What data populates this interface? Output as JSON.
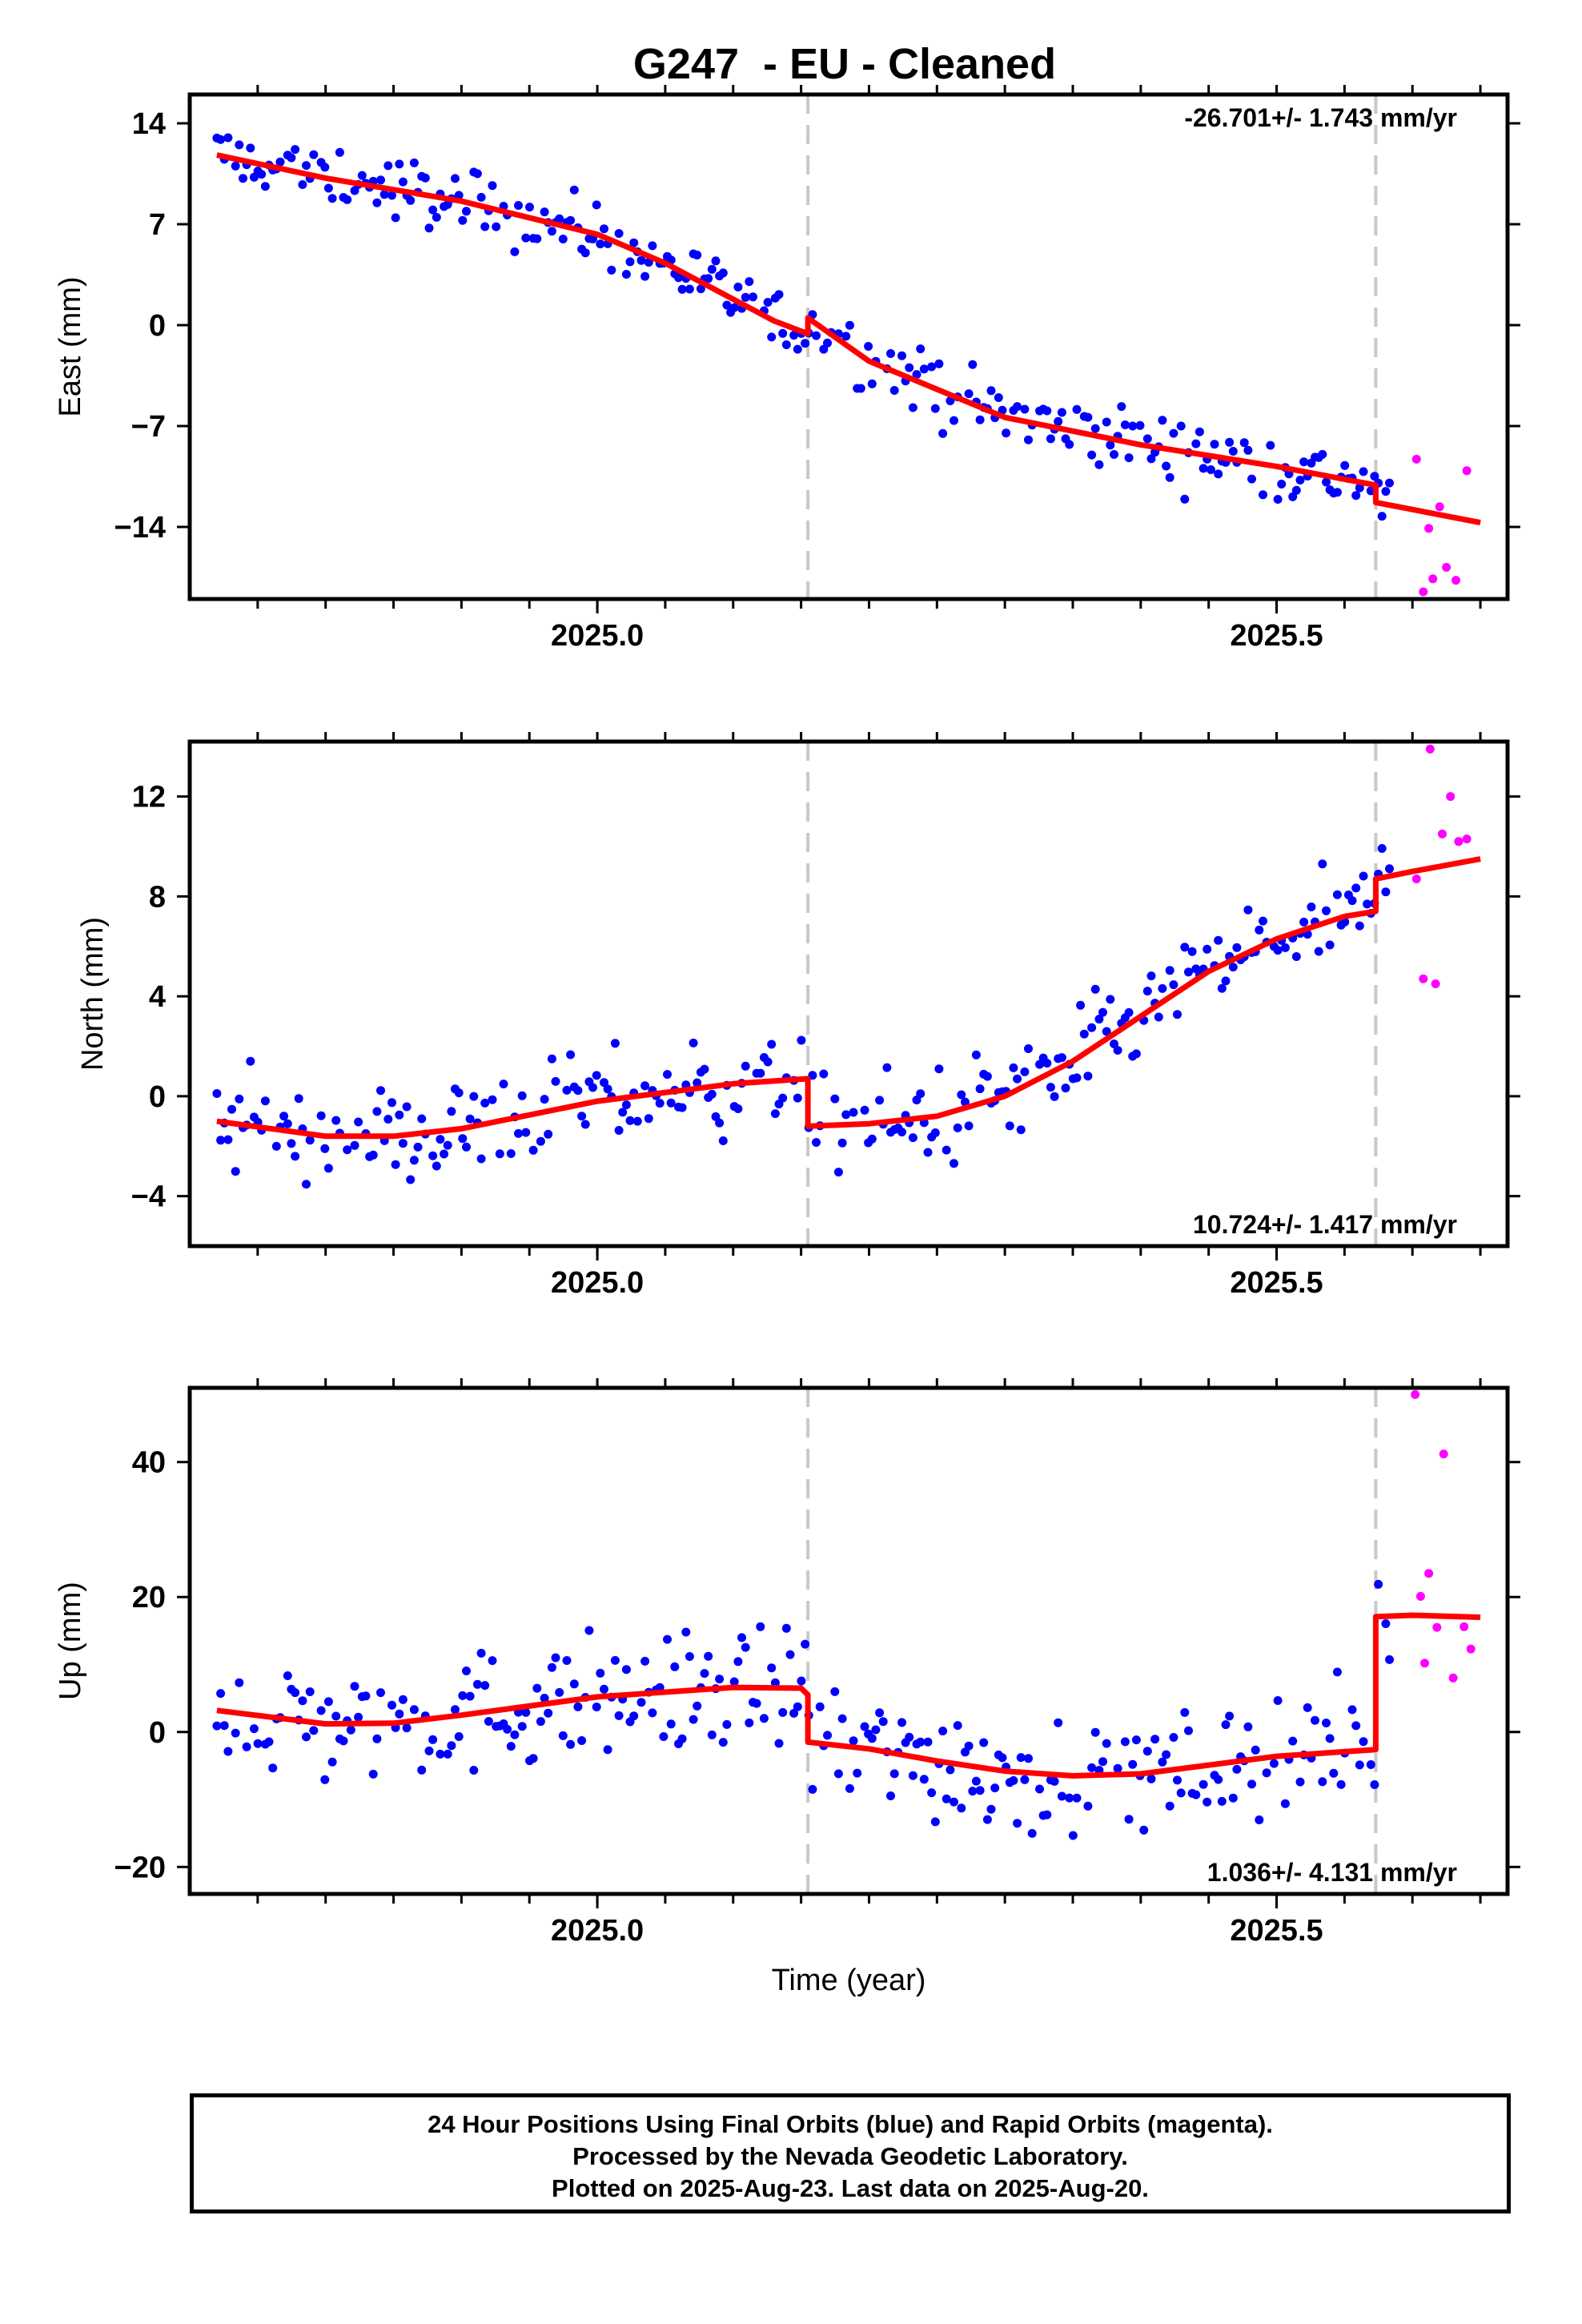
{
  "title": "G247  - EU - Cleaned",
  "colors": {
    "final": "#0000ff",
    "rapid": "#ff00ff",
    "model": "#ff0000",
    "events": "#c8c8c8"
  },
  "caption": [
    "24 Hour Positions Using Final Orbits (blue) and Rapid Orbits (magenta).",
    "Processed by the Nevada Geodetic Laboratory.",
    "Plotted on 2025-Aug-23. Last data on 2025-Aug-20."
  ],
  "chart_data": [
    {
      "type": "scatter",
      "ylabel": "East (mm)",
      "xlabel": "",
      "xlim": [
        2024.7,
        2025.67
      ],
      "ylim": [
        -19,
        16
      ],
      "xticks": [
        2025.0,
        2025.5
      ],
      "yticks": [
        -14,
        -7,
        0,
        7,
        14
      ],
      "rate_label": "-26.701+/- 1.743 mm/yr",
      "rate_position": "top-right",
      "events": [
        2025.155,
        2025.573
      ],
      "model_series": {
        "x": [
          2024.72,
          2024.8,
          2024.9,
          2025.0,
          2025.05,
          2025.1,
          2025.13,
          2025.155,
          2025.155,
          2025.2,
          2025.3,
          2025.4,
          2025.5,
          2025.573,
          2025.573,
          2025.65
        ],
        "y": [
          11.8,
          10.2,
          8.6,
          6.3,
          4.3,
          1.8,
          0.3,
          -0.6,
          0.5,
          -2.5,
          -6.4,
          -8.3,
          -9.8,
          -11.1,
          -12.3,
          -13.7
        ]
      },
      "rapid_series": {
        "x": [
          2025.603,
          2025.608,
          2025.612,
          2025.615,
          2025.62,
          2025.625,
          2025.632,
          2025.64
        ],
        "y": [
          -9.3,
          -18.5,
          -14.1,
          -17.6,
          -12.6,
          -16.8,
          -17.7,
          -10.1
        ]
      }
    },
    {
      "type": "scatter",
      "ylabel": "North (mm)",
      "xlabel": "",
      "xlim": [
        2024.7,
        2025.67
      ],
      "ylim": [
        -6,
        14.2
      ],
      "xticks": [
        2025.0,
        2025.5
      ],
      "yticks": [
        -4,
        0,
        4,
        8,
        12
      ],
      "rate_label": "10.724+/- 1.417 mm/yr",
      "rate_position": "bottom-right",
      "events": [
        2025.155,
        2025.573
      ],
      "model_series": {
        "x": [
          2024.72,
          2024.8,
          2024.85,
          2024.9,
          2025.0,
          2025.1,
          2025.155,
          2025.155,
          2025.2,
          2025.25,
          2025.3,
          2025.35,
          2025.4,
          2025.45,
          2025.5,
          2025.55,
          2025.573,
          2025.573,
          2025.6,
          2025.65
        ],
        "y": [
          -1.0,
          -1.6,
          -1.6,
          -1.3,
          -0.2,
          0.5,
          0.7,
          -1.2,
          -1.1,
          -0.8,
          0.0,
          1.4,
          3.2,
          5.0,
          6.3,
          7.2,
          7.4,
          8.7,
          9.0,
          9.5
        ]
      },
      "rapid_series": {
        "x": [
          2025.603,
          2025.608,
          2025.613,
          2025.617,
          2025.622,
          2025.628,
          2025.634,
          2025.64
        ],
        "y": [
          8.7,
          4.7,
          13.9,
          4.5,
          10.5,
          12.0,
          10.2,
          10.3
        ]
      }
    },
    {
      "type": "scatter",
      "ylabel": "Up (mm)",
      "xlabel": "Time (year)",
      "xlim": [
        2024.7,
        2025.67
      ],
      "ylim": [
        -24,
        51
      ],
      "xticks": [
        2025.0,
        2025.5
      ],
      "yticks": [
        -20,
        0,
        20,
        40
      ],
      "rate_label": "1.036+/- 4.131 mm/yr",
      "rate_position": "bottom-right",
      "events": [
        2025.155,
        2025.573
      ],
      "model_series": {
        "x": [
          2024.72,
          2024.8,
          2024.85,
          2024.9,
          2025.0,
          2025.1,
          2025.15,
          2025.155,
          2025.155,
          2025.2,
          2025.25,
          2025.3,
          2025.35,
          2025.4,
          2025.45,
          2025.5,
          2025.573,
          2025.573,
          2025.6,
          2025.65
        ],
        "y": [
          3.2,
          1.2,
          1.3,
          2.5,
          5.2,
          6.6,
          6.5,
          5.5,
          -1.5,
          -2.5,
          -4.3,
          -5.8,
          -6.5,
          -6.2,
          -4.9,
          -3.6,
          -2.6,
          17.1,
          17.3,
          17.0
        ]
      },
      "rapid_series": {
        "x": [
          2025.602,
          2025.606,
          2025.609,
          2025.612,
          2025.618,
          2025.623,
          2025.63,
          2025.638,
          2025.643
        ],
        "y": [
          50.0,
          20.1,
          10.2,
          23.5,
          15.5,
          41.2,
          8.0,
          15.6,
          12.3
        ]
      }
    }
  ]
}
